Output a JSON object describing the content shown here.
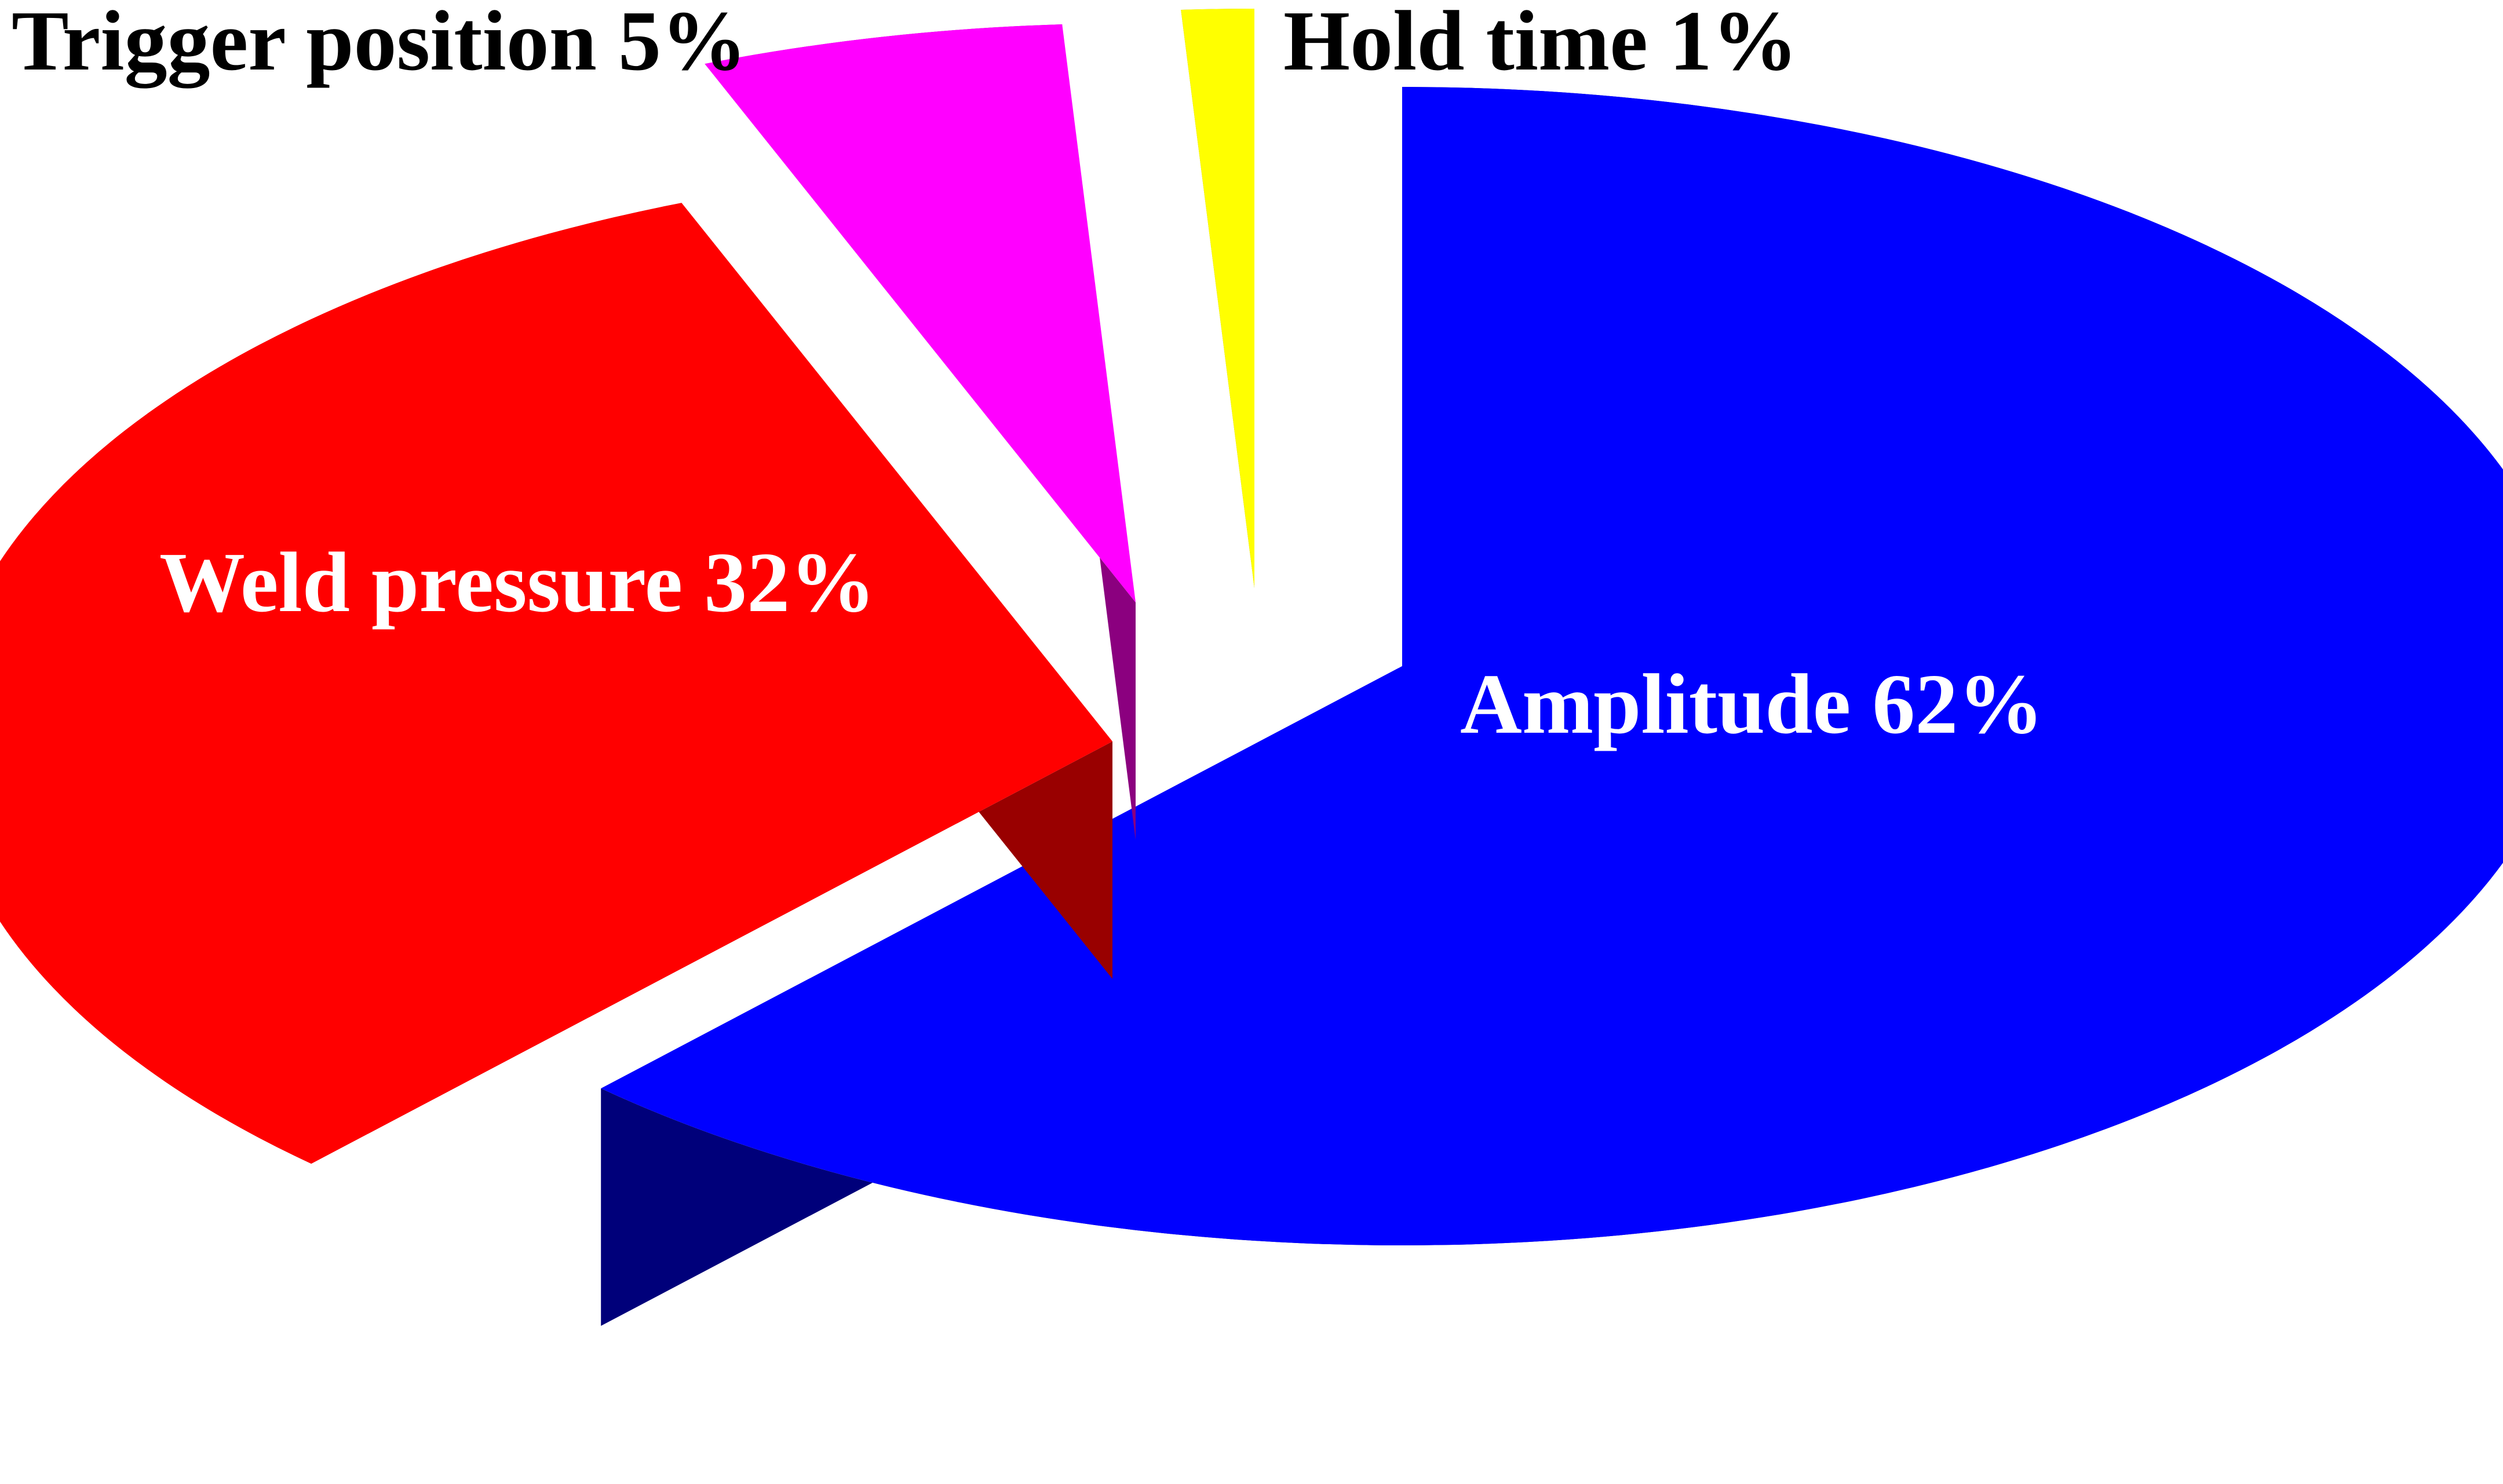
{
  "chart_data": {
    "type": "pie",
    "style": "3d-exploded",
    "title": "",
    "slices": [
      {
        "label": "Amplitude 62%",
        "value": 62,
        "top_color": "#0000ff",
        "side_color": "#00007a"
      },
      {
        "label": "Weld pressure 32%",
        "value": 32,
        "top_color": "#ff0000",
        "side_color": "#990000"
      },
      {
        "label": "Trigger position 5%",
        "value": 5,
        "top_color": "#ff00ff",
        "side_color": "#8b007f"
      },
      {
        "label": "Hold time 1%",
        "value": 1,
        "top_color": "#ffff00",
        "side_color": "#8a8000"
      }
    ]
  }
}
